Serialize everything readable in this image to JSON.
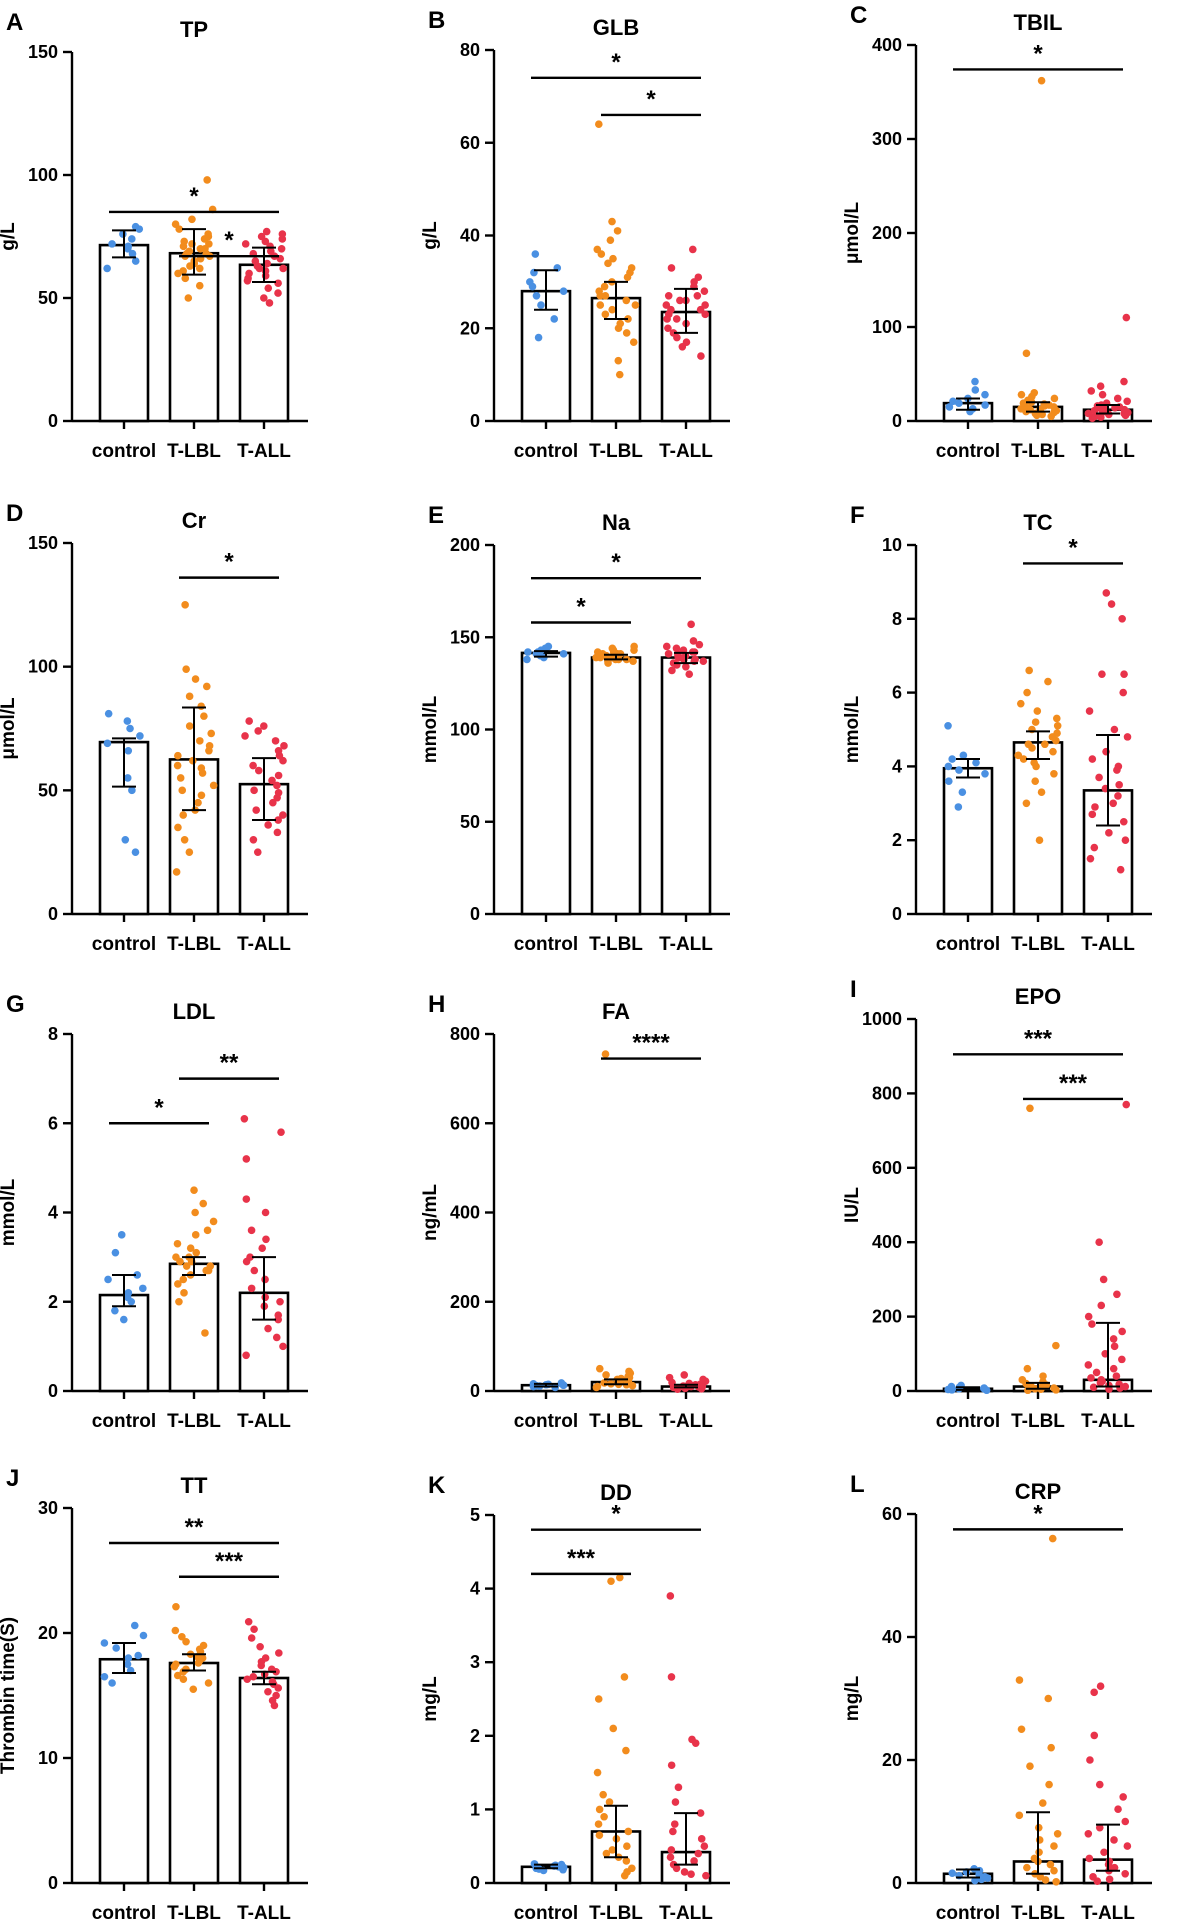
{
  "figure": {
    "groups": [
      "control",
      "T-LBL",
      "T-ALL"
    ]
  },
  "colors": {
    "control": "#4a90e2",
    "T-LBL": "#f28c1d",
    "T-ALL": "#e8334a",
    "axis": "#000000"
  },
  "chart_data": [
    {
      "id": "A",
      "type": "bar",
      "title": "TP",
      "ylabel": "g/L",
      "ylim": [
        0,
        150
      ],
      "yticks": [
        0,
        50,
        100,
        150
      ],
      "categories": [
        "control",
        "T-LBL",
        "T-ALL"
      ],
      "means": [
        71.5,
        68.2,
        63.5
      ],
      "err_low": [
        66.5,
        59.5,
        56.5
      ],
      "err_high": [
        77.5,
        78.0,
        70.5
      ],
      "points": [
        [
          62,
          65,
          68,
          70,
          71,
          72,
          74,
          76,
          78,
          79
        ],
        [
          50,
          55,
          58,
          60,
          61,
          62,
          63,
          64,
          65,
          66,
          67,
          67,
          68,
          68,
          69,
          70,
          70,
          71,
          72,
          72,
          73,
          74,
          75,
          76,
          78,
          80,
          82,
          86,
          98
        ],
        [
          48,
          50,
          52,
          54,
          56,
          57,
          58,
          59,
          60,
          61,
          62,
          62,
          63,
          64,
          65,
          66,
          67,
          68,
          69,
          70,
          71,
          72,
          73,
          74,
          75,
          76,
          77
        ]
      ],
      "sig": [
        {
          "from": 0,
          "to": 2,
          "level": 85,
          "label": "*"
        },
        {
          "from": 1,
          "to": 2,
          "level": 67,
          "label": "*"
        }
      ]
    },
    {
      "id": "B",
      "type": "bar",
      "title": "GLB",
      "ylabel": "g/L",
      "ylim": [
        0,
        80
      ],
      "yticks": [
        0,
        20,
        40,
        60,
        80
      ],
      "categories": [
        "control",
        "T-LBL",
        "T-ALL"
      ],
      "means": [
        28,
        26.5,
        23.5
      ],
      "err_low": [
        24,
        22,
        19
      ],
      "err_high": [
        32.5,
        30,
        28.5
      ],
      "points": [
        [
          18,
          22,
          25,
          27,
          28,
          29,
          30,
          32,
          33,
          36
        ],
        [
          10,
          13,
          17,
          19,
          20,
          21,
          22,
          23,
          24,
          25,
          25,
          26,
          27,
          27,
          28,
          29,
          30,
          31,
          32,
          33,
          34,
          35,
          36,
          37,
          39,
          41,
          43,
          64
        ],
        [
          14,
          16,
          17,
          18,
          19,
          20,
          21,
          22,
          22,
          23,
          23,
          24,
          24,
          25,
          25,
          26,
          26,
          27,
          27,
          28,
          29,
          30,
          31,
          33,
          37
        ]
      ],
      "sig": [
        {
          "from": 0,
          "to": 2,
          "level": 74,
          "label": "*"
        },
        {
          "from": 1,
          "to": 2,
          "level": 66,
          "label": "*"
        }
      ]
    },
    {
      "id": "C",
      "type": "bar",
      "title": "TBIL",
      "ylabel": "μmol/L",
      "ylim": [
        0,
        400
      ],
      "yticks": [
        0,
        100,
        200,
        300,
        400
      ],
      "categories": [
        "control",
        "T-LBL",
        "T-ALL"
      ],
      "means": [
        19,
        15,
        12
      ],
      "err_low": [
        12,
        10,
        8
      ],
      "err_high": [
        24,
        20,
        17
      ],
      "points": [
        [
          10,
          13,
          15,
          17,
          19,
          21,
          24,
          28,
          33,
          42
        ],
        [
          5,
          6,
          7,
          8,
          9,
          10,
          10,
          11,
          12,
          12,
          13,
          14,
          15,
          16,
          17,
          18,
          19,
          20,
          22,
          24,
          26,
          28,
          30,
          72,
          362
        ],
        [
          3,
          4,
          5,
          6,
          7,
          8,
          8,
          9,
          10,
          10,
          11,
          12,
          12,
          13,
          14,
          15,
          16,
          17,
          19,
          21,
          24,
          28,
          32,
          37,
          42,
          110
        ]
      ],
      "sig": [
        {
          "from": 0,
          "to": 2,
          "level": 374,
          "label": "*"
        }
      ]
    },
    {
      "id": "D",
      "type": "bar",
      "title": "Cr",
      "ylabel": "μmol/L",
      "ylim": [
        0,
        150
      ],
      "yticks": [
        0,
        50,
        100,
        150
      ],
      "categories": [
        "control",
        "T-LBL",
        "T-ALL"
      ],
      "means": [
        69.5,
        62.5,
        52.5
      ],
      "err_low": [
        51.5,
        42,
        38
      ],
      "err_high": [
        71,
        83.5,
        63
      ],
      "points": [
        [
          25,
          30,
          50,
          55,
          66,
          69,
          72,
          75,
          78,
          81
        ],
        [
          17,
          25,
          30,
          35,
          40,
          42,
          45,
          48,
          50,
          52,
          55,
          57,
          59,
          60,
          62,
          64,
          66,
          68,
          70,
          73,
          76,
          80,
          84,
          88,
          92,
          95,
          99,
          125
        ],
        [
          25,
          30,
          33,
          36,
          38,
          40,
          42,
          45,
          47,
          49,
          50,
          52,
          54,
          56,
          58,
          60,
          62,
          64,
          66,
          68,
          70,
          72,
          74,
          76,
          78
        ]
      ],
      "sig": [
        {
          "from": 1,
          "to": 2,
          "level": 136,
          "label": "*"
        }
      ]
    },
    {
      "id": "E",
      "type": "bar",
      "title": "Na",
      "ylabel": "mmol/L",
      "ylim": [
        0,
        200
      ],
      "yticks": [
        0,
        50,
        100,
        150,
        200
      ],
      "categories": [
        "control",
        "T-LBL",
        "T-ALL"
      ],
      "means": [
        141.5,
        139,
        139
      ],
      "err_low": [
        139.5,
        138,
        136
      ],
      "err_high": [
        142.5,
        140.5,
        141.5
      ],
      "points": [
        [
          138,
          139,
          140,
          141,
          141,
          142,
          142,
          143,
          144,
          145
        ],
        [
          136,
          137,
          137,
          138,
          138,
          138,
          139,
          139,
          139,
          139,
          140,
          140,
          140,
          140,
          141,
          141,
          141,
          142,
          142,
          143,
          143,
          144,
          145
        ],
        [
          130,
          132,
          134,
          135,
          136,
          137,
          137,
          138,
          138,
          139,
          139,
          140,
          140,
          141,
          141,
          142,
          142,
          143,
          144,
          145,
          146,
          148,
          157
        ]
      ],
      "sig": [
        {
          "from": 0,
          "to": 2,
          "level": 182,
          "label": "*"
        },
        {
          "from": 0,
          "to": 1,
          "level": 158,
          "label": "*"
        }
      ]
    },
    {
      "id": "F",
      "type": "bar",
      "title": "TC",
      "ylabel": "mmol/L",
      "ylim": [
        0,
        10
      ],
      "yticks": [
        0,
        2,
        4,
        6,
        8,
        10
      ],
      "categories": [
        "control",
        "T-LBL",
        "T-ALL"
      ],
      "means": [
        3.95,
        4.65,
        3.35
      ],
      "err_low": [
        3.7,
        4.2,
        2.4
      ],
      "err_high": [
        4.2,
        4.95,
        4.85
      ],
      "points": [
        [
          2.9,
          3.3,
          3.6,
          3.8,
          3.9,
          4.0,
          4.1,
          4.2,
          4.3,
          5.1
        ],
        [
          2.0,
          3.0,
          3.3,
          3.6,
          3.8,
          4.0,
          4.1,
          4.2,
          4.3,
          4.4,
          4.5,
          4.6,
          4.6,
          4.7,
          4.8,
          4.9,
          5.0,
          5.1,
          5.2,
          5.3,
          5.5,
          5.7,
          6.0,
          6.3,
          6.6
        ],
        [
          1.2,
          1.5,
          1.8,
          2.0,
          2.2,
          2.5,
          2.7,
          2.9,
          3.0,
          3.2,
          3.4,
          3.5,
          3.7,
          3.9,
          4.0,
          4.2,
          4.4,
          4.8,
          5.0,
          5.5,
          6.0,
          6.5,
          6.5,
          8.0,
          8.4,
          8.7
        ]
      ],
      "sig": [
        {
          "from": 1,
          "to": 2,
          "level": 9.5,
          "label": "*"
        }
      ]
    },
    {
      "id": "G",
      "type": "bar",
      "title": "LDL",
      "ylabel": "mmol/L",
      "ylim": [
        0,
        8
      ],
      "yticks": [
        0,
        2,
        4,
        6,
        8
      ],
      "categories": [
        "control",
        "T-LBL",
        "T-ALL"
      ],
      "means": [
        2.15,
        2.85,
        2.2
      ],
      "err_low": [
        1.9,
        2.6,
        1.6
      ],
      "err_high": [
        2.6,
        3.0,
        3.0
      ],
      "points": [
        [
          1.6,
          1.8,
          2.0,
          2.1,
          2.2,
          2.3,
          2.5,
          2.6,
          3.1,
          3.5
        ],
        [
          1.3,
          2.0,
          2.2,
          2.4,
          2.5,
          2.6,
          2.7,
          2.7,
          2.8,
          2.8,
          2.9,
          2.9,
          3.0,
          3.0,
          3.1,
          3.2,
          3.3,
          3.5,
          3.6,
          3.8,
          4.0,
          4.2,
          4.5
        ],
        [
          0.8,
          1.0,
          1.2,
          1.4,
          1.6,
          1.7,
          1.9,
          2.0,
          2.1,
          2.3,
          2.5,
          2.7,
          2.9,
          3.0,
          3.2,
          3.4,
          3.6,
          4.0,
          4.3,
          5.2,
          5.8,
          6.1
        ]
      ],
      "sig": [
        {
          "from": 1,
          "to": 2,
          "level": 7.0,
          "label": "**"
        },
        {
          "from": 0,
          "to": 1,
          "level": 6.0,
          "label": "*"
        }
      ]
    },
    {
      "id": "H",
      "type": "bar",
      "title": "FA",
      "ylabel": "ng/mL",
      "ylim": [
        0,
        800
      ],
      "yticks": [
        0,
        200,
        400,
        600,
        800
      ],
      "categories": [
        "control",
        "T-LBL",
        "T-ALL"
      ],
      "means": [
        13,
        20,
        10
      ],
      "err_low": [
        10,
        15,
        8
      ],
      "err_high": [
        16,
        26,
        14
      ],
      "points": [
        [
          8,
          10,
          11,
          12,
          13,
          13,
          14,
          15,
          16,
          18
        ],
        [
          8,
          10,
          12,
          14,
          15,
          16,
          18,
          20,
          22,
          24,
          26,
          28,
          30,
          33,
          36,
          40,
          44,
          50,
          755
        ],
        [
          4,
          5,
          6,
          7,
          8,
          9,
          10,
          10,
          11,
          12,
          13,
          14,
          15,
          17,
          19,
          22,
          26,
          30,
          36
        ]
      ],
      "sig": [
        {
          "from": 1,
          "to": 2,
          "level": 745,
          "label": "****"
        }
      ]
    },
    {
      "id": "I",
      "type": "bar",
      "title": "EPO",
      "ylabel": "IU/L",
      "ylim": [
        0,
        1000
      ],
      "yticks": [
        0,
        200,
        400,
        600,
        800,
        1000
      ],
      "categories": [
        "control",
        "T-LBL",
        "T-ALL"
      ],
      "means": [
        6,
        12,
        30
      ],
      "err_low": [
        3,
        6,
        12
      ],
      "err_high": [
        10,
        22,
        183
      ],
      "points": [
        [
          2,
          3,
          4,
          5,
          6,
          7,
          8,
          10,
          12,
          15
        ],
        [
          2,
          3,
          5,
          6,
          8,
          10,
          12,
          14,
          16,
          20,
          25,
          30,
          40,
          60,
          122,
          760
        ],
        [
          5,
          8,
          10,
          12,
          15,
          18,
          22,
          26,
          30,
          35,
          40,
          50,
          60,
          70,
          85,
          100,
          120,
          140,
          160,
          180,
          200,
          230,
          260,
          300,
          400,
          770
        ]
      ],
      "sig": [
        {
          "from": 0,
          "to": 2,
          "level": 905,
          "label": "***"
        },
        {
          "from": 1,
          "to": 2,
          "level": 785,
          "label": "***"
        }
      ]
    },
    {
      "id": "J",
      "type": "bar",
      "title": "TT",
      "ylabel": "Thrombin time(S)",
      "ylim": [
        0,
        30
      ],
      "yticks": [
        0,
        10,
        20,
        30
      ],
      "categories": [
        "control",
        "T-LBL",
        "T-ALL"
      ],
      "means": [
        17.9,
        17.6,
        16.4
      ],
      "err_low": [
        16.8,
        17.0,
        15.9
      ],
      "err_high": [
        19.2,
        18.3,
        16.9
      ],
      "points": [
        [
          16.0,
          16.5,
          17.0,
          17.5,
          18.0,
          18.2,
          18.8,
          19.2,
          19.8,
          20.6
        ],
        [
          15.5,
          16.0,
          16.3,
          16.6,
          16.9,
          17.1,
          17.3,
          17.5,
          17.6,
          17.8,
          18.0,
          18.1,
          18.3,
          18.5,
          18.7,
          19.0,
          19.3,
          19.7,
          20.2,
          22.1
        ],
        [
          14.2,
          14.6,
          15.0,
          15.3,
          15.6,
          15.9,
          16.1,
          16.3,
          16.5,
          16.7,
          16.9,
          17.1,
          17.4,
          17.7,
          18.0,
          18.4,
          18.9,
          19.6,
          20.3,
          20.9
        ]
      ],
      "sig": [
        {
          "from": 0,
          "to": 2,
          "level": 27.2,
          "label": "**"
        },
        {
          "from": 1,
          "to": 2,
          "level": 24.5,
          "label": "***"
        }
      ]
    },
    {
      "id": "K",
      "type": "bar",
      "title": "DD",
      "ylabel": "mg/L",
      "ylim": [
        0,
        5
      ],
      "yticks": [
        0,
        1,
        2,
        3,
        4,
        5
      ],
      "categories": [
        "control",
        "T-LBL",
        "T-ALL"
      ],
      "means": [
        0.22,
        0.7,
        0.42
      ],
      "err_low": [
        0.2,
        0.35,
        0.25
      ],
      "err_high": [
        0.25,
        1.05,
        0.95
      ],
      "points": [
        [
          0.17,
          0.18,
          0.19,
          0.2,
          0.21,
          0.22,
          0.23,
          0.24,
          0.25,
          0.26
        ],
        [
          0.1,
          0.15,
          0.2,
          0.3,
          0.35,
          0.4,
          0.45,
          0.5,
          0.6,
          0.65,
          0.7,
          0.8,
          0.9,
          1.0,
          1.1,
          1.2,
          1.5,
          1.8,
          2.1,
          2.5,
          2.8,
          4.1,
          4.15
        ],
        [
          0.1,
          0.12,
          0.15,
          0.2,
          0.25,
          0.3,
          0.35,
          0.4,
          0.45,
          0.5,
          0.6,
          0.7,
          0.8,
          0.95,
          1.1,
          1.3,
          1.6,
          1.9,
          1.95,
          2.8,
          3.9
        ]
      ],
      "sig": [
        {
          "from": 0,
          "to": 2,
          "level": 4.8,
          "label": "*"
        },
        {
          "from": 0,
          "to": 1,
          "level": 4.2,
          "label": "***"
        }
      ]
    },
    {
      "id": "L",
      "type": "bar",
      "title": "CRP",
      "ylabel": "mg/L",
      "ylim": [
        0,
        60
      ],
      "yticks": [
        0,
        20,
        40,
        60
      ],
      "categories": [
        "control",
        "T-LBL",
        "T-ALL"
      ],
      "means": [
        1.5,
        3.5,
        3.8
      ],
      "err_low": [
        0.9,
        1.5,
        2.0
      ],
      "err_high": [
        2.2,
        11.5,
        9.5
      ],
      "points": [
        [
          0.4,
          0.6,
          0.8,
          1.0,
          1.2,
          1.4,
          1.6,
          1.8,
          2.0,
          2.3
        ],
        [
          0.2,
          0.5,
          1.0,
          1.5,
          2.0,
          2.5,
          3.0,
          3.5,
          4.0,
          5.0,
          6.0,
          7.0,
          8.0,
          9.0,
          11,
          13,
          16,
          19,
          22,
          25,
          30,
          33,
          56
        ],
        [
          0.3,
          0.6,
          1.0,
          1.5,
          2.0,
          2.5,
          3.0,
          3.5,
          4.0,
          5.0,
          6.0,
          7.0,
          8.0,
          9.0,
          10,
          12,
          14,
          16,
          20,
          24,
          31,
          32
        ]
      ],
      "sig": [
        {
          "from": 0,
          "to": 2,
          "level": 57.5,
          "label": "*"
        }
      ]
    }
  ]
}
